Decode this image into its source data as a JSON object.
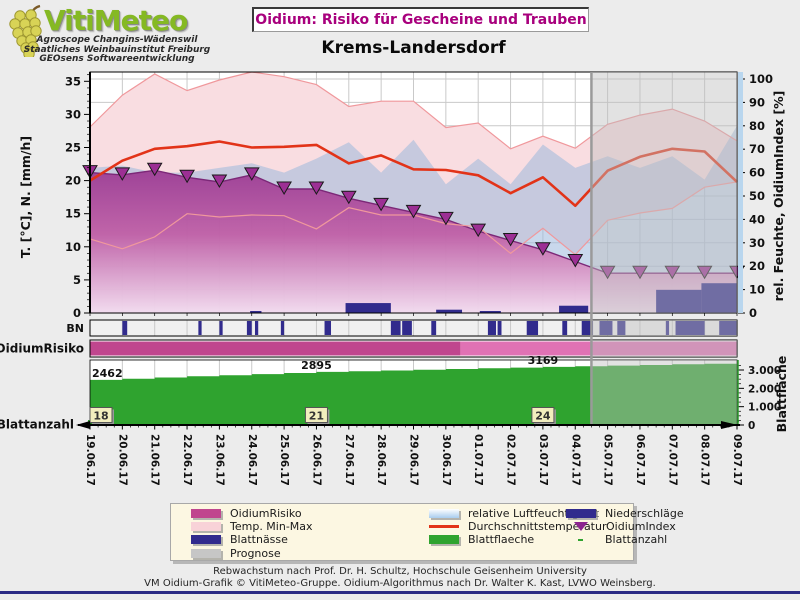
{
  "header": {
    "logo_title": "VitiMeteo",
    "logo_lines": [
      "Agroscope Changins-Wädenswil",
      "Staatliches Weinbauinstitut Freiburg",
      "GEOsens Softwareentwicklung"
    ],
    "title_box": "Oidium: Risiko für Gescheine und Trauben",
    "station_title": "Krems-Landersdorf"
  },
  "axes": {
    "left_label": "T. [°C], N. [mm/h]",
    "right_label": "rel. Feuchte, OidiumIndex [%]",
    "leaf_right_label": "Blattfläche",
    "left_ticks": [
      0,
      5,
      10,
      15,
      20,
      25,
      30,
      35
    ],
    "right_ticks": [
      0,
      10,
      20,
      30,
      40,
      50,
      60,
      70,
      80,
      90,
      100
    ],
    "leaf_ticks": [
      {
        "value": 0,
        "text": "0"
      },
      {
        "value": 1000,
        "text": "1.000"
      },
      {
        "value": 2000,
        "text": "2.000"
      },
      {
        "value": 3000,
        "text": "3.000"
      }
    ]
  },
  "chart_data": {
    "type": "line",
    "dates": [
      "19.06.17",
      "20.06.17",
      "21.06.17",
      "22.06.17",
      "23.06.17",
      "24.06.17",
      "25.06.17",
      "26.06.17",
      "27.06.17",
      "28.06.17",
      "29.06.17",
      "30.06.17",
      "01.07.17",
      "02.07.17",
      "03.07.17",
      "04.07.17",
      "05.07.17",
      "06.07.17",
      "07.07.17",
      "08.07.17",
      "09.07.17"
    ],
    "prognose_from_day": 15.5,
    "ylim_left": [
      0,
      36.4
    ],
    "ylim_right": [
      0,
      103
    ],
    "series": [
      {
        "name": "Temp. Min-Max",
        "kind": "band",
        "axis": "left",
        "max": [
          28.1,
          32.9,
          36.1,
          33.6,
          35.2,
          36.4,
          35.7,
          34.5,
          31.2,
          32.0,
          32.0,
          28.0,
          28.7,
          24.8,
          26.7,
          24.9,
          28.5,
          29.9,
          30.8,
          29.0,
          26.0
        ],
        "min": [
          11.2,
          9.7,
          11.5,
          15.0,
          14.5,
          14.8,
          14.7,
          12.7,
          15.9,
          14.8,
          14.8,
          13.5,
          13.0,
          9.0,
          12.8,
          8.8,
          14.0,
          15.1,
          15.8,
          19.0,
          19.8
        ]
      },
      {
        "name": "relative Luftfeuchtigkeit",
        "kind": "area",
        "axis": "right",
        "values": [
          62,
          63,
          60,
          60,
          62,
          64,
          60,
          66,
          73,
          60,
          74,
          55,
          66,
          55,
          72,
          62,
          67,
          62,
          67,
          57,
          80
        ]
      },
      {
        "name": "OidiumIndex",
        "kind": "area-markers",
        "axis": "right",
        "values": [
          60,
          59,
          61,
          58,
          56,
          59,
          53,
          53,
          49,
          46,
          43,
          40,
          35,
          31,
          27,
          22,
          17,
          17,
          17,
          17,
          17
        ]
      },
      {
        "name": "Durchschnittstemperatur",
        "kind": "line",
        "axis": "left",
        "values": [
          20.0,
          23.0,
          24.8,
          25.2,
          25.9,
          25.0,
          25.1,
          25.4,
          22.6,
          23.8,
          21.7,
          21.6,
          20.8,
          18.1,
          20.5,
          16.2,
          21.5,
          23.6,
          24.8,
          24.4,
          19.8
        ]
      },
      {
        "name": "Niederschläge",
        "kind": "bars",
        "axis": "left",
        "bars": [
          {
            "from": 4.95,
            "to": 5.3,
            "mm": 0.3
          },
          {
            "from": 7.9,
            "to": 9.3,
            "mm": 1.5
          },
          {
            "from": 10.7,
            "to": 11.5,
            "mm": 0.5
          },
          {
            "from": 12.05,
            "to": 12.7,
            "mm": 0.3
          },
          {
            "from": 14.5,
            "to": 15.4,
            "mm": 1.1
          },
          {
            "from": 17.5,
            "to": 18.9,
            "mm": 3.5
          },
          {
            "from": 18.9,
            "to": 20.0,
            "mm": 4.5
          }
        ]
      }
    ],
    "wetness": {
      "label": "BN",
      "series_name": "Blattnässe",
      "bars": [
        [
          1.0,
          1.15
        ],
        [
          3.35,
          3.45
        ],
        [
          4.0,
          4.1
        ],
        [
          4.85,
          5.0
        ],
        [
          5.1,
          5.2
        ],
        [
          5.9,
          6.0
        ],
        [
          7.25,
          7.45
        ],
        [
          9.3,
          9.6
        ],
        [
          9.65,
          9.95
        ],
        [
          10.55,
          10.7
        ],
        [
          12.3,
          12.55
        ],
        [
          12.6,
          12.72
        ],
        [
          13.5,
          13.85
        ],
        [
          14.6,
          14.75
        ],
        [
          15.2,
          15.55
        ],
        [
          15.75,
          16.15
        ],
        [
          16.3,
          16.55
        ],
        [
          17.8,
          17.9
        ],
        [
          18.1,
          19.0
        ],
        [
          19.45,
          20.0
        ]
      ]
    },
    "risk": {
      "label": "OidiumRisiko",
      "segments": [
        {
          "from": 0,
          "to": 11.45,
          "level": "high"
        },
        {
          "from": 11.45,
          "to": 20,
          "level": "medium"
        }
      ]
    },
    "leaf": {
      "label": "Blattanzahl",
      "series_name": "Blattflaeche",
      "area_values": [
        2462,
        2525,
        2590,
        2655,
        2715,
        2775,
        2835,
        2895,
        2935,
        2975,
        3015,
        3055,
        3095,
        3130,
        3169,
        3205,
        3240,
        3275,
        3310,
        3345,
        3380
      ],
      "area_labels": [
        {
          "day": 0,
          "text": "2462"
        },
        {
          "day": 7,
          "text": "2895"
        },
        {
          "day": 14,
          "text": "3169"
        }
      ],
      "count_labels": [
        {
          "day": 0,
          "text": "18"
        },
        {
          "day": 7,
          "text": "21"
        },
        {
          "day": 14,
          "text": "24"
        }
      ]
    }
  },
  "legend": {
    "columns": [
      [
        {
          "label": "OidiumRisiko",
          "swatch": "risk"
        },
        {
          "label": "Temp. Min-Max",
          "swatch": "band"
        },
        {
          "label": "Blattnässe",
          "swatch": "wetness"
        },
        {
          "label": "Prognose",
          "swatch": "prognose"
        }
      ],
      [
        {
          "label": "relative Luftfeuchtigkeit",
          "swatch": "humidity"
        },
        {
          "label": "Durchschnittstemperatur",
          "swatch": "line"
        },
        {
          "label": "Blattflaeche",
          "swatch": "leaf"
        }
      ],
      [
        {
          "label": "Niederschläge",
          "swatch": "precip"
        },
        {
          "label": "OidiumIndex",
          "swatch": "triangle"
        },
        {
          "label": "Blattanzahl",
          "swatch": "dash"
        }
      ]
    ]
  },
  "footer": {
    "line1": "Rebwachstum nach Prof. Dr. H. Schultz, Hochschule Geisenheim University",
    "line2": "VM Oidium-Grafik © VitiMeteo-Gruppe. Oidium-Algorithmus nach Dr. Walter K. Kast, LVWO Weinsberg."
  },
  "colors": {
    "page_bg": "#ececec",
    "plot_bg": "#ffffff",
    "grid": "#c9c9c9",
    "risk_high": "#c0468e",
    "risk_medium": "#e072b4",
    "temp_band": "#f9dde1",
    "temp_band_edge": "#f0989c",
    "humidity": "#9db8dd",
    "avg_temp": "#e23318",
    "oidium_top": "#9c3c94",
    "oidium_mid": "#c05fa6",
    "oidium_bottom": "#f4dcef",
    "oidium_edge": "#7c2878",
    "marker": "#9c2f94",
    "precip": "#312b8d",
    "wetness": "#312b8d",
    "prognose_overlay": "#bfbfbf",
    "leaf_area": "#2fa32f",
    "right_axis_strip": "#b9d6ee",
    "count_box_bg": "#f2eebe",
    "title_accent": "#a8007d",
    "footer_rule": "#2b2b85",
    "logo_green": "#85b923"
  }
}
